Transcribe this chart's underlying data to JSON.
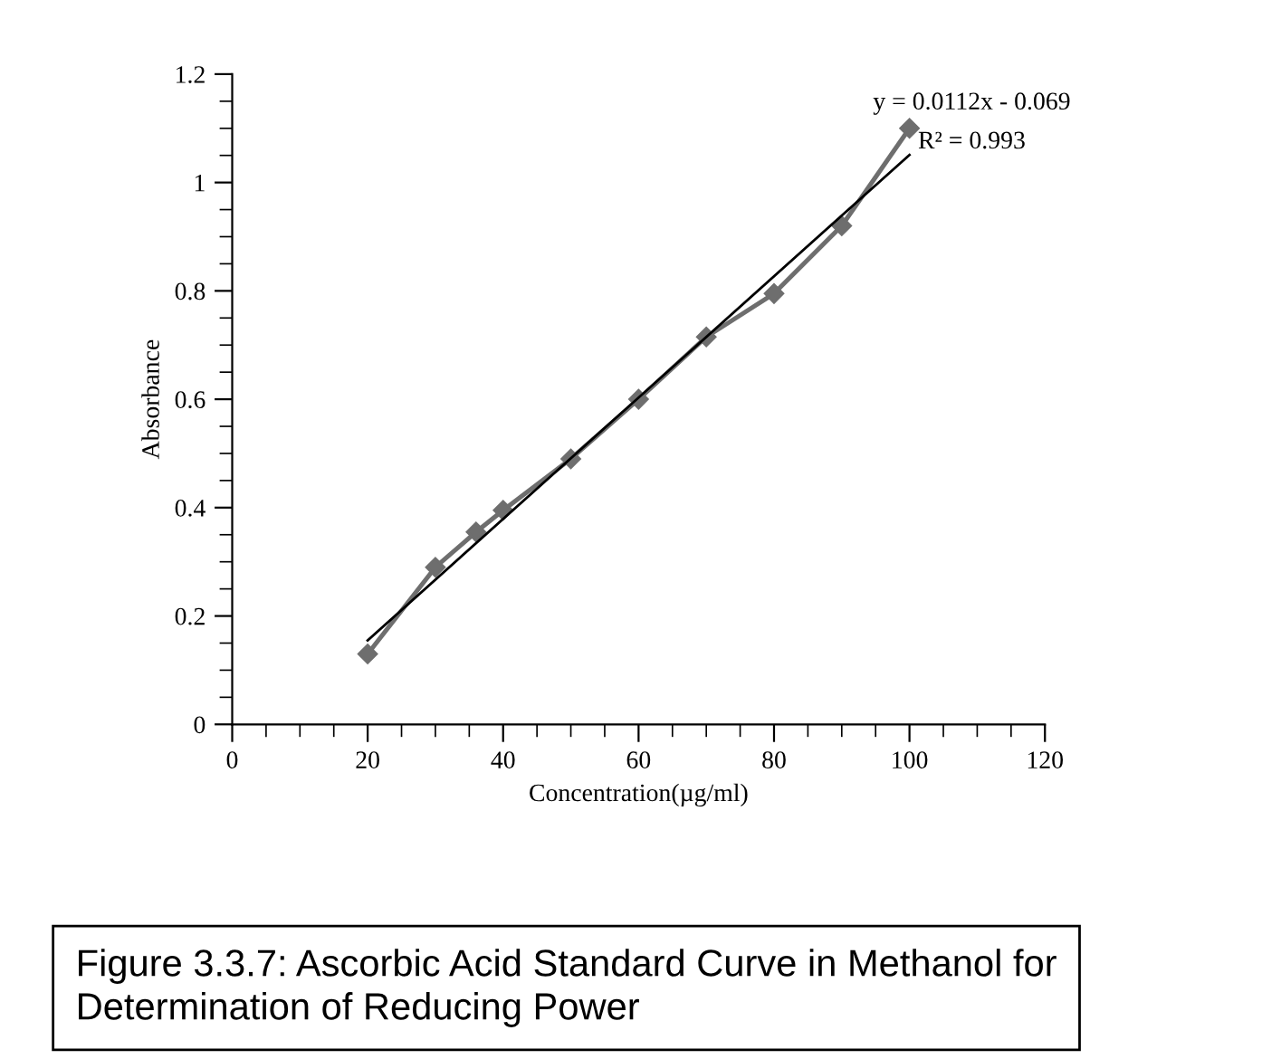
{
  "chart_data": {
    "type": "line",
    "xlabel": "Concentration(µg/ml)",
    "ylabel": "Absorbance",
    "series": [
      {
        "color": "#6e6e6e",
        "marker": "diamond",
        "x": [
          20,
          30,
          36,
          40,
          50,
          60,
          70,
          80,
          90,
          100
        ],
        "values": [
          0.13,
          0.29,
          0.355,
          0.395,
          0.49,
          0.6,
          0.715,
          0.795,
          0.92,
          1.1
        ]
      },
      {
        "color": "#000000",
        "marker": "none",
        "x": [
          20,
          100
        ],
        "values": [
          0.155,
          1.051
        ]
      }
    ],
    "xlim": [
      0,
      120
    ],
    "xticks": [
      0,
      20,
      40,
      60,
      80,
      100,
      120
    ],
    "ylim": [
      0,
      1.2
    ],
    "yticks": [
      0,
      0.2,
      0.4,
      0.6,
      0.8,
      1,
      1.2
    ],
    "grid": false,
    "legend": false,
    "annotations": [
      "y = 0.0112x - 0.069",
      "R² = 0.993",
      "Figure 3.3.7: Ascorbic Acid Standard Curve in Methanol for Determination of Reducing Power"
    ]
  }
}
